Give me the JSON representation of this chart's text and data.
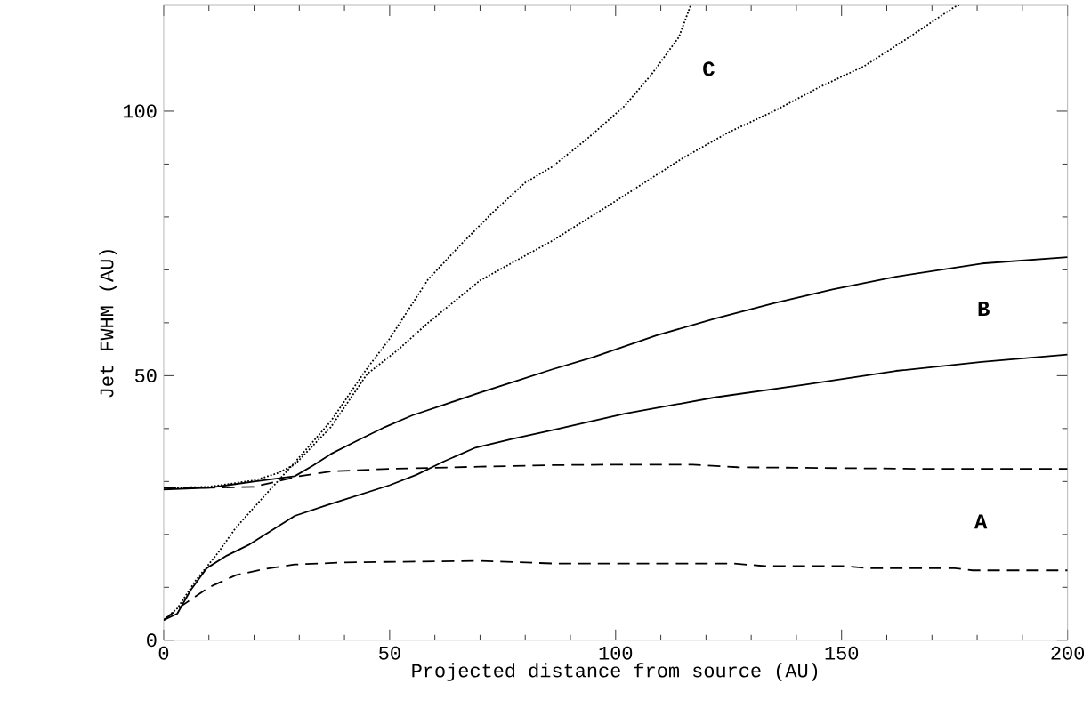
{
  "chart_data": {
    "type": "line",
    "xlabel": "Projected distance from source (AU)",
    "ylabel": "Jet FWHM (AU)",
    "xlim": [
      0,
      200
    ],
    "ylim": [
      0,
      120
    ],
    "xticks": [
      0,
      50,
      100,
      150,
      200
    ],
    "yticks": [
      0,
      50,
      100
    ],
    "grid": false,
    "marker": "none",
    "series": [
      {
        "color": "#000000",
        "line_style": "dashed",
        "x": [
          0,
          10,
          20,
          30,
          37,
          50,
          70,
          86,
          100,
          117,
          127,
          140,
          167,
          185,
          200
        ],
        "values": [
          28.8,
          28.8,
          29.0,
          31.0,
          31.9,
          32.4,
          32.8,
          33.1,
          33.2,
          33.2,
          32.7,
          32.6,
          32.4,
          32.4,
          32.4
        ]
      },
      {
        "color": "#000000",
        "line_style": "dashed",
        "x": [
          0,
          4,
          10,
          16,
          22,
          29,
          40,
          49,
          60,
          70,
          86,
          100,
          126,
          133,
          151,
          156,
          175,
          179,
          200
        ],
        "values": [
          3.8,
          6.5,
          10,
          12.3,
          13.4,
          14.3,
          14.7,
          14.8,
          14.9,
          15,
          14.5,
          14.5,
          14.5,
          14,
          14,
          13.6,
          13.6,
          13.2,
          13.2
        ]
      },
      {
        "color": "#000000",
        "line_style": "solid",
        "x": [
          0,
          3,
          6,
          9.5,
          14,
          19,
          24,
          29,
          36,
          43,
          50,
          56,
          62,
          69,
          77,
          86,
          102,
          122,
          142,
          162,
          181,
          200
        ],
        "values": [
          3.8,
          5,
          9.5,
          13.6,
          16,
          18.1,
          20.8,
          23.5,
          25.5,
          27.4,
          29.3,
          31.3,
          33.8,
          36.4,
          38,
          39.7,
          42.8,
          45.9,
          48.3,
          50.9,
          52.6,
          54
        ]
      },
      {
        "color": "#000000",
        "line_style": "solid",
        "x": [
          0,
          10,
          20,
          29,
          33,
          37,
          43,
          49,
          55,
          62,
          70,
          78,
          86,
          95,
          109,
          122,
          135,
          148,
          162,
          181,
          200
        ],
        "values": [
          28.5,
          28.8,
          30,
          31,
          33,
          35.2,
          37.8,
          40.3,
          42.5,
          44.5,
          46.8,
          49,
          51.2,
          53.5,
          57.6,
          60.8,
          63.7,
          66.3,
          68.7,
          71.2,
          72.4
        ]
      },
      {
        "color": "#000000",
        "line_style": "dotted",
        "x": [
          0,
          3,
          7,
          12,
          16,
          22,
          29,
          37,
          44.6,
          50,
          58.5,
          66,
          73,
          80,
          86,
          94,
          102,
          108,
          114,
          116.6
        ],
        "values": [
          3.8,
          6,
          11.2,
          16.5,
          21.3,
          27,
          33.6,
          41.4,
          50.9,
          57,
          68.2,
          75,
          81,
          86.5,
          89.5,
          95,
          101,
          107,
          114,
          120
        ]
      },
      {
        "color": "#000000",
        "line_style": "dotted",
        "x": [
          0,
          10,
          20,
          25,
          29,
          37,
          45,
          52,
          58.5,
          70,
          86,
          100,
          115,
          125,
          135,
          145,
          155,
          165,
          175,
          176
        ],
        "values": [
          28.8,
          29.0,
          30.2,
          31.5,
          33.2,
          40.3,
          50.3,
          55,
          60,
          68,
          75.5,
          83,
          91.2,
          96,
          100,
          104.5,
          108.5,
          114,
          119.7,
          120
        ]
      }
    ],
    "annotations": [
      "C",
      "B",
      "A"
    ]
  }
}
